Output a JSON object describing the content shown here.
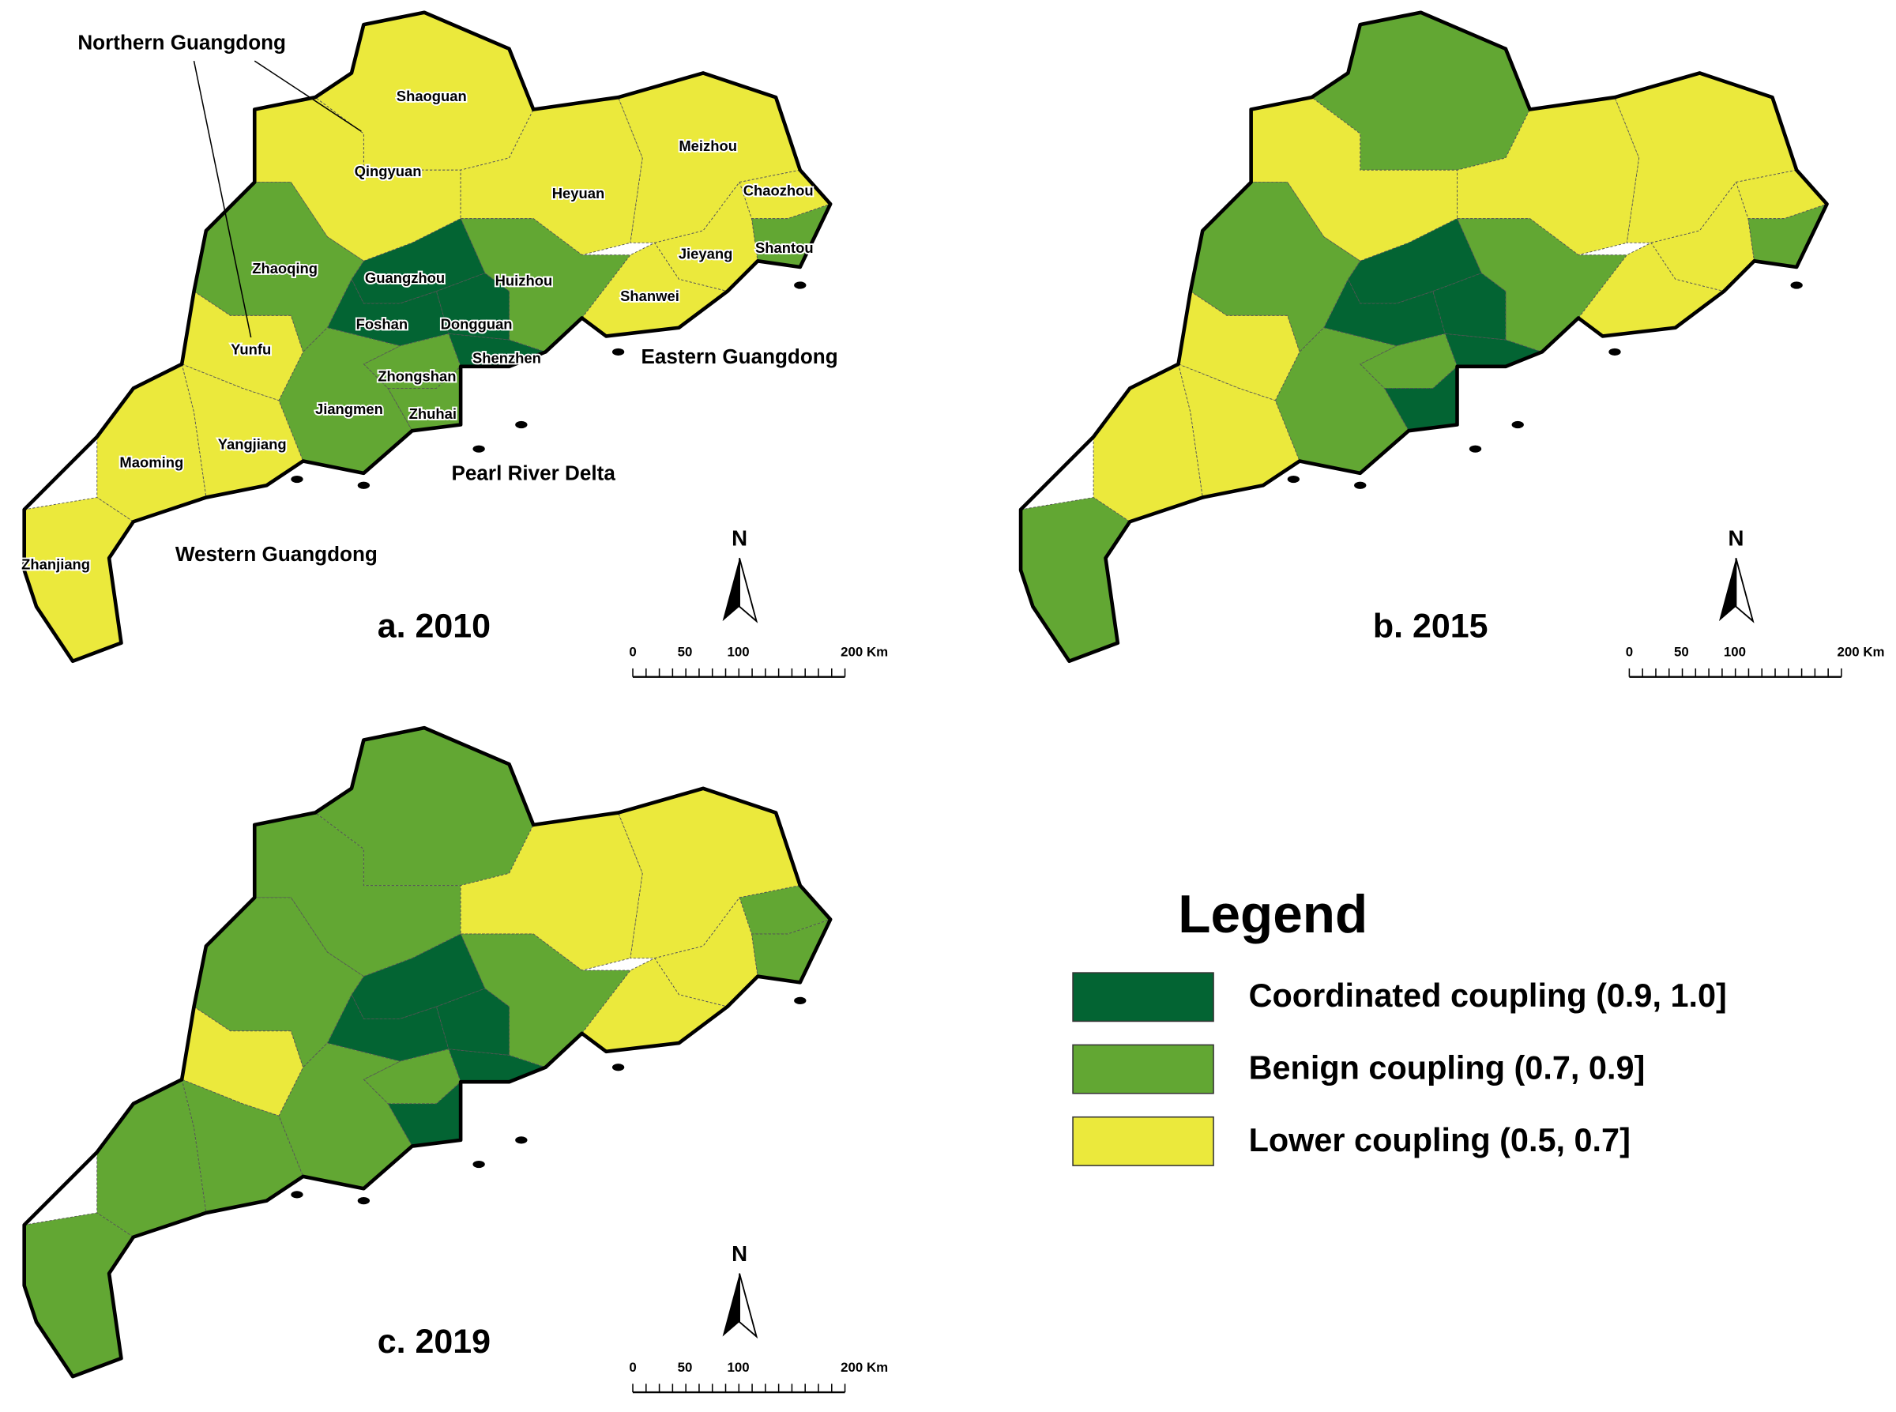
{
  "cities": [
    "Shaoguan",
    "Qingyuan",
    "Heyuan",
    "Meizhou",
    "Chaozhou",
    "Shantou",
    "Jieyang",
    "Shanwei",
    "Huizhou",
    "Guangzhou",
    "Dongguan",
    "Shenzhen",
    "Foshan",
    "Zhaoqing",
    "Zhongshan",
    "Zhuhai",
    "Jiangmen",
    "Yunfu",
    "Yangjiang",
    "Maoming",
    "Zhanjiang"
  ],
  "regions": [
    "Northern Guangdong",
    "Eastern Guangdong",
    "Pearl River Delta",
    "Western Guangdong"
  ],
  "panels": [
    {
      "title": "a. 2010",
      "classes": [
        2,
        2,
        2,
        2,
        2,
        1,
        2,
        2,
        1,
        0,
        0,
        0,
        0,
        1,
        1,
        1,
        1,
        2,
        2,
        2,
        2
      ]
    },
    {
      "title": "b. 2015",
      "classes": [
        1,
        2,
        2,
        2,
        2,
        1,
        2,
        2,
        1,
        0,
        0,
        0,
        0,
        1,
        1,
        0,
        1,
        2,
        2,
        2,
        1
      ]
    },
    {
      "title": "c. 2019",
      "classes": [
        1,
        1,
        2,
        2,
        1,
        1,
        2,
        2,
        1,
        0,
        0,
        0,
        0,
        1,
        1,
        0,
        1,
        2,
        1,
        1,
        1
      ]
    }
  ],
  "north": "N",
  "scalebar": [
    "0",
    "50",
    "100",
    "200 Km"
  ],
  "legend": {
    "title": "Legend",
    "items": [
      {
        "label": "Coordinated coupling (0.9, 1.0]",
        "color": "#036433"
      },
      {
        "label": "Benign coupling (0.7, 0.9]",
        "color": "#62a733"
      },
      {
        "label": "Lower coupling (0.5, 0.7]",
        "color": "#ebe93c"
      }
    ]
  }
}
